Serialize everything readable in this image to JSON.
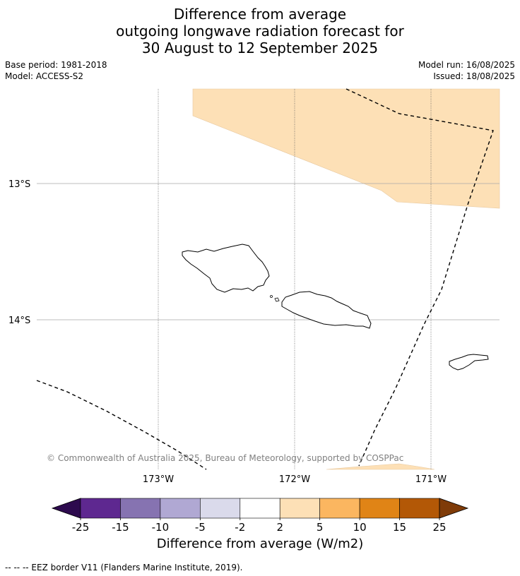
{
  "title": {
    "line1": "Difference from average",
    "line2": "outgoing longwave radiation forecast for",
    "line3": "30 August to 12 September 2025"
  },
  "meta": {
    "base_period": "Base period: 1981-2018",
    "model": "Model: ACCESS-S2",
    "model_run": "Model run: 16/08/2025",
    "issued": "Issued: 18/08/2025"
  },
  "map": {
    "lat_labels": [
      "13°S",
      "14°S"
    ],
    "lon_labels": [
      "173°W",
      "172°W",
      "171°W"
    ],
    "copyright": "© Commonwealth of Australia 2025, Bureau of Meteorology, supported by COSPPac"
  },
  "colorbar": {
    "tick_labels": [
      "-25",
      "-15",
      "-10",
      "-5",
      "-2",
      "2",
      "5",
      "10",
      "15",
      "25"
    ],
    "colors": [
      "#2d0a4e",
      "#5e2890",
      "#8673b1",
      "#b0a8d3",
      "#dadaeb",
      "#ffffff",
      "#fde0b6",
      "#fbb660",
      "#e08416",
      "#b35806",
      "#7f3b08"
    ],
    "label": "Difference from average (W/m2)"
  },
  "footnote": "--  --  -- EEZ border V11 (Flanders Marine Institute, 2019)."
}
